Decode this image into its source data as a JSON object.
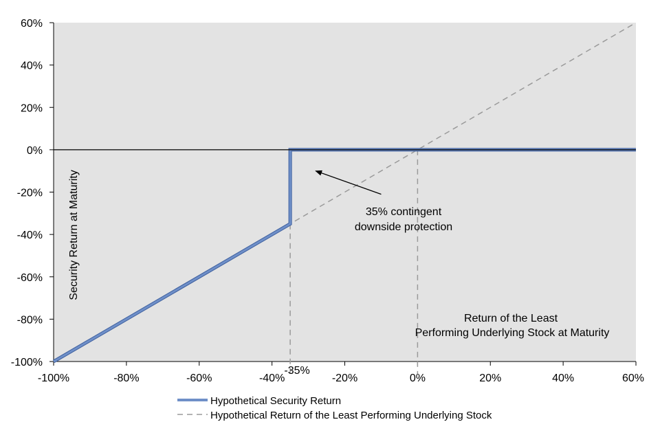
{
  "chart_data": {
    "type": "line",
    "title": "",
    "xlabel": "Return of the Least Performing Underlying Stock at Maturity",
    "xlabel_lines": [
      "Return of the Least",
      "Performing Underlying Stock at Maturity"
    ],
    "ylabel": "Security Return at Maturity",
    "xlim": [
      -100,
      60
    ],
    "ylim": [
      -100,
      60
    ],
    "x_ticks": [
      -100,
      -80,
      -60,
      -40,
      -20,
      0,
      20,
      40,
      60
    ],
    "y_ticks": [
      -100,
      -80,
      -60,
      -40,
      -20,
      0,
      20,
      40,
      60
    ],
    "x_tick_labels": [
      "-100%",
      "-80%",
      "-60%",
      "-40%",
      "-20%",
      "0%",
      "20%",
      "40%",
      "60%"
    ],
    "y_tick_labels": [
      "-100%",
      "-80%",
      "-60%",
      "-40%",
      "-20%",
      "0%",
      "20%",
      "40%",
      "60%"
    ],
    "extra_x_label": {
      "x": -35,
      "label": "-35%"
    },
    "grid": false,
    "legend_position": "bottom",
    "background_color": "#e3e3e3",
    "series": [
      {
        "name": "Hypothetical Security Return",
        "style": "solid",
        "color": "#6f8fc8",
        "points": [
          [
            -100,
            -100
          ],
          [
            -35,
            -35
          ],
          [
            -35,
            0
          ],
          [
            60,
            0
          ]
        ]
      },
      {
        "name": "Hypothetical Return of the Least Performing Underlying Stock",
        "style": "dashed",
        "color": "#9a9a9a",
        "points": [
          [
            -100,
            -100
          ],
          [
            60,
            60
          ]
        ]
      }
    ],
    "reference_lines": [
      {
        "orientation": "vertical",
        "x": -35,
        "style": "dashed",
        "color": "#9a9a9a"
      },
      {
        "orientation": "vertical",
        "x": 0,
        "style": "dashed",
        "color": "#9a9a9a"
      }
    ],
    "annotations": [
      {
        "text_lines": [
          "35% contingent",
          "downside protection"
        ],
        "arrow_to": [
          -28,
          -10
        ],
        "anchor": [
          -10,
          -21
        ]
      }
    ]
  }
}
